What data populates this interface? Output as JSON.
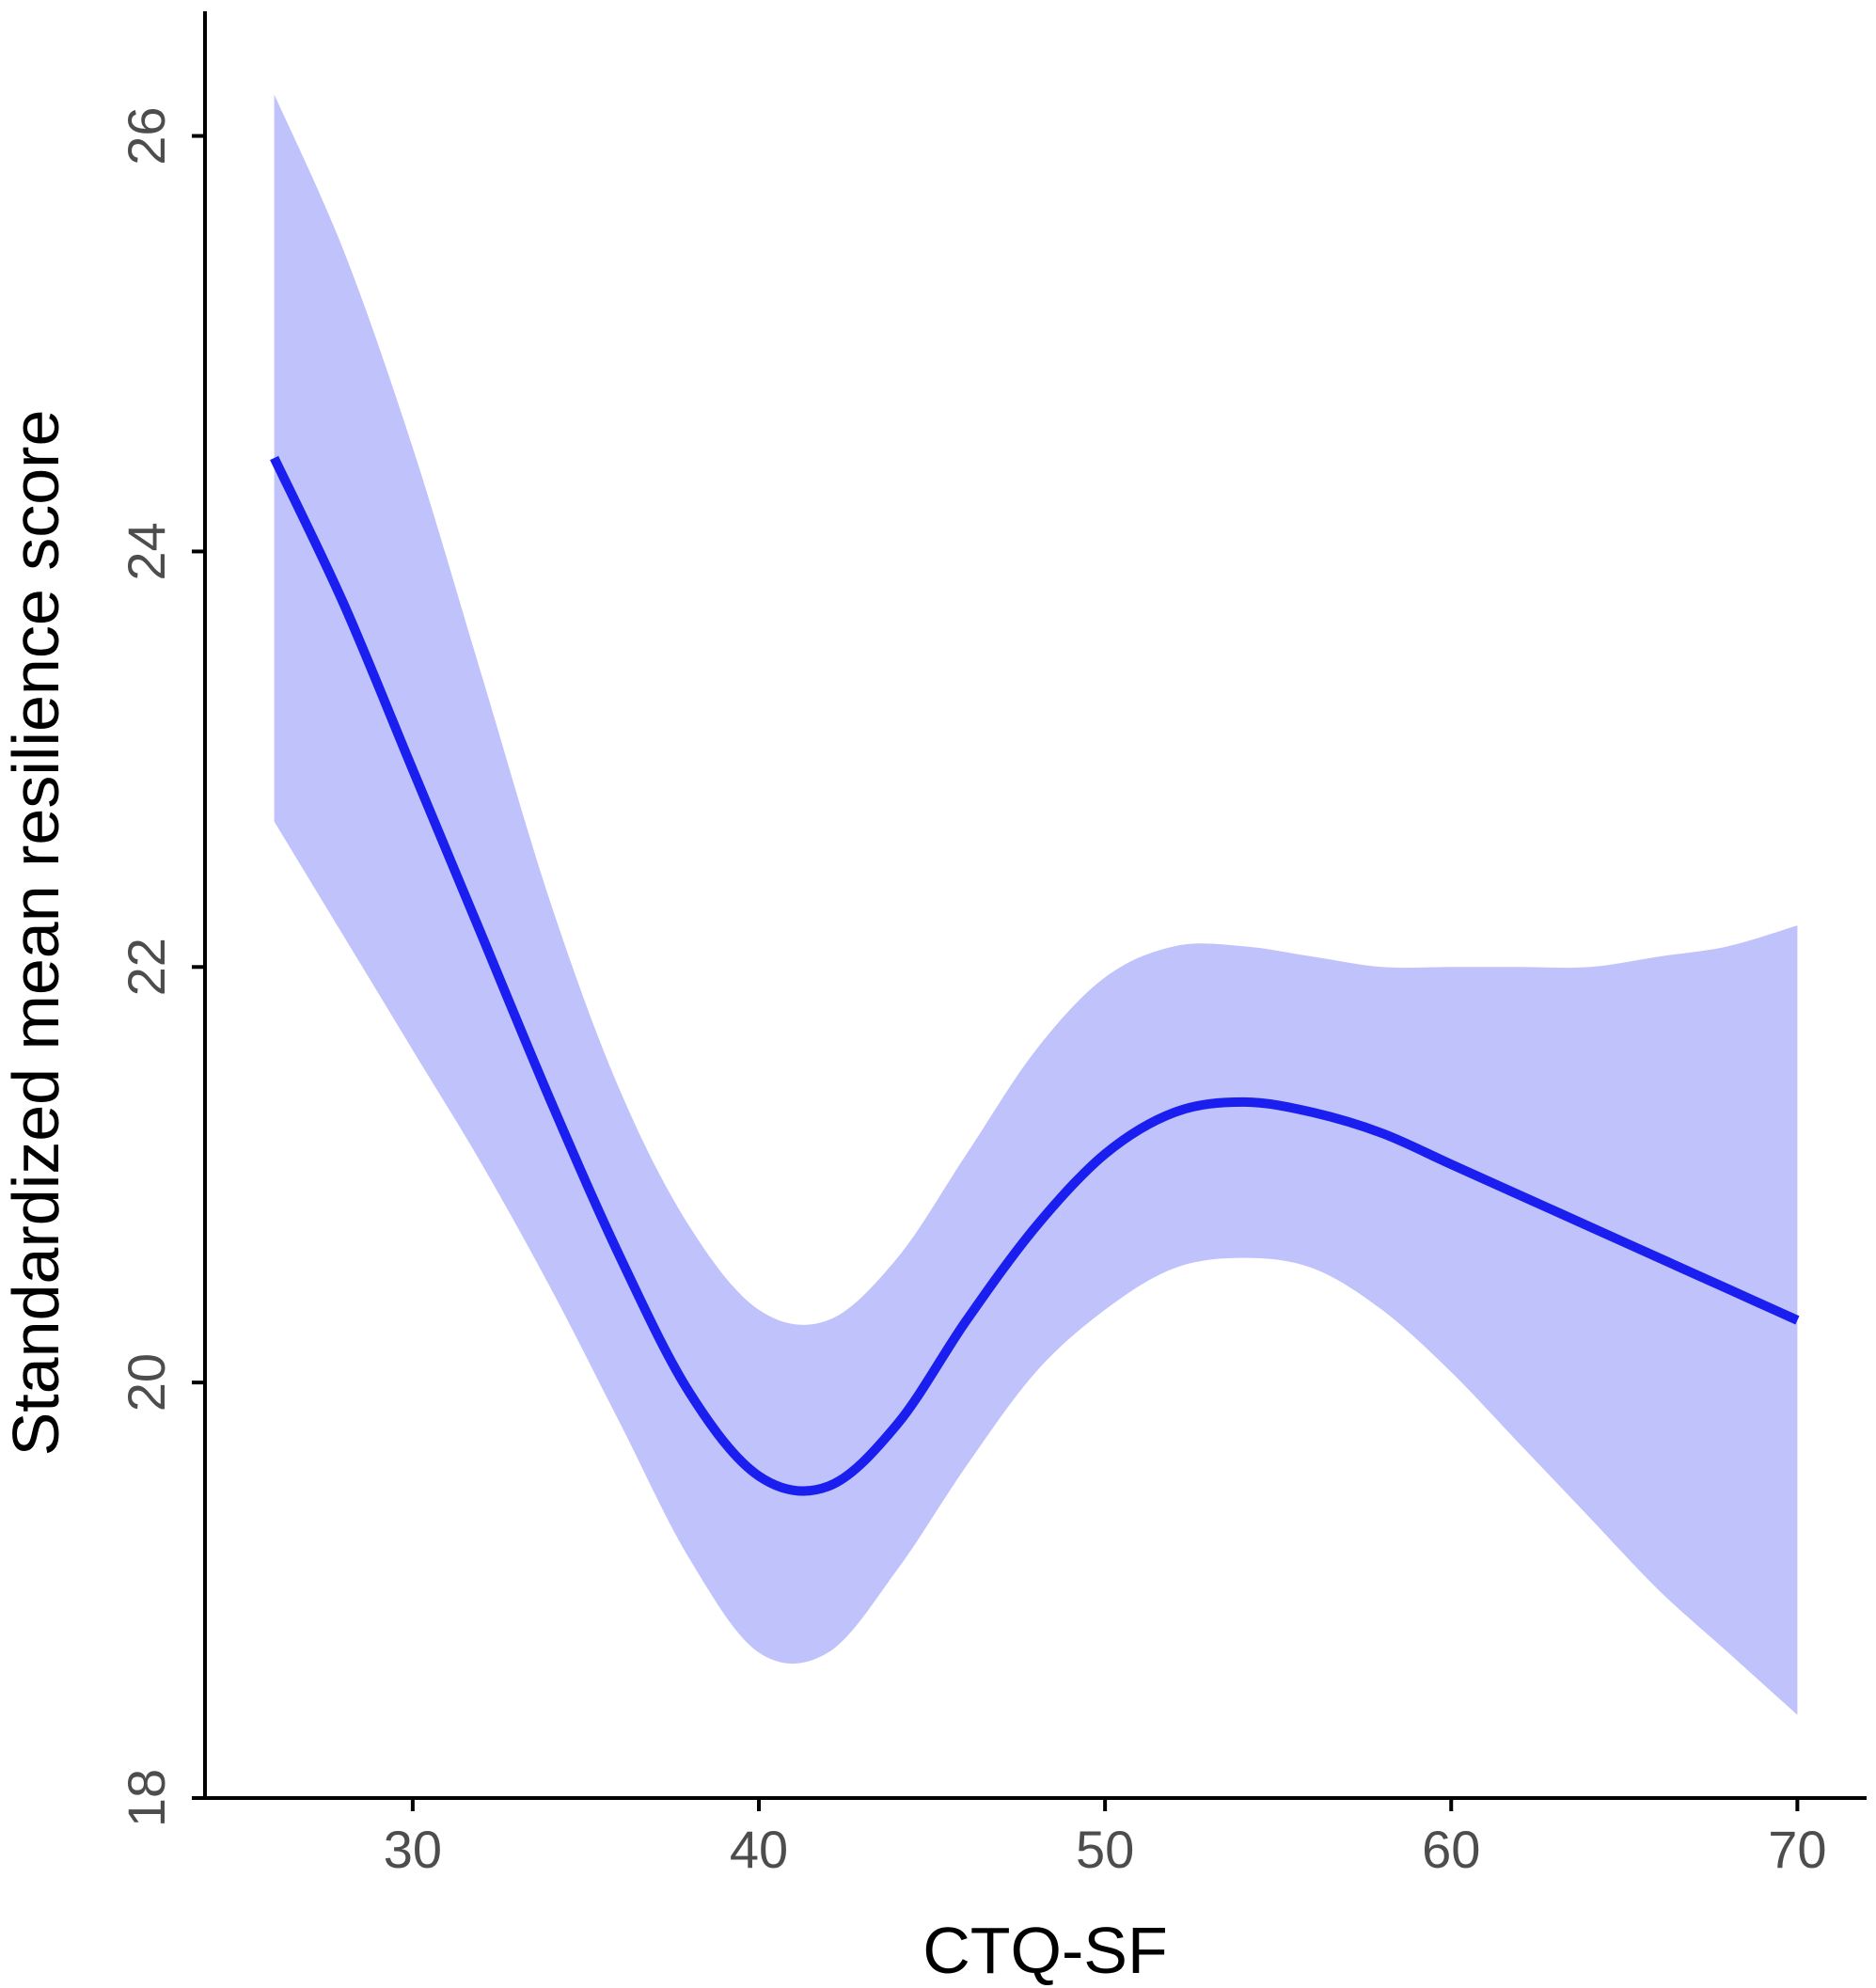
{
  "chart_data": {
    "type": "line",
    "title": "",
    "xlabel": "CTQ-SF",
    "ylabel": "Standardized mean resilience score",
    "xlim": [
      24,
      72
    ],
    "ylim": [
      18,
      26.6
    ],
    "x_ticks": [
      30,
      40,
      50,
      60,
      70
    ],
    "y_ticks": [
      18,
      20,
      22,
      24,
      26
    ],
    "grid": false,
    "legend": "none",
    "series": [
      {
        "kind": "confidence-band",
        "color": "#c0c3fb",
        "x": [
          26,
          28,
          30,
          32,
          34,
          36,
          38,
          40,
          42,
          44,
          46,
          48,
          50,
          52,
          54,
          56,
          58,
          60,
          62,
          64,
          66,
          68,
          70
        ],
        "lower": [
          22.7,
          22.15,
          21.6,
          21.05,
          20.45,
          19.8,
          19.15,
          18.7,
          18.7,
          19.1,
          19.6,
          20.05,
          20.35,
          20.55,
          20.6,
          20.55,
          20.35,
          20.05,
          19.7,
          19.35,
          19.0,
          18.7,
          18.4
        ],
        "upper": [
          26.2,
          25.45,
          24.5,
          23.4,
          22.3,
          21.4,
          20.75,
          20.35,
          20.3,
          20.6,
          21.1,
          21.6,
          21.95,
          22.1,
          22.1,
          22.05,
          22.0,
          22.0,
          22.0,
          22.0,
          22.05,
          22.1,
          22.2
        ]
      },
      {
        "kind": "smooth-line",
        "color": "#1a1ff0",
        "x": [
          26,
          28,
          30,
          32,
          34,
          36,
          38,
          40,
          42,
          44,
          46,
          48,
          50,
          52,
          54,
          56,
          58,
          60,
          62,
          64,
          66,
          68,
          70
        ],
        "y": [
          24.45,
          23.75,
          22.95,
          22.15,
          21.35,
          20.6,
          19.95,
          19.55,
          19.5,
          19.8,
          20.3,
          20.75,
          21.1,
          21.3,
          21.35,
          21.3,
          21.2,
          21.05,
          20.9,
          20.75,
          20.6,
          20.45,
          20.3
        ]
      }
    ]
  }
}
